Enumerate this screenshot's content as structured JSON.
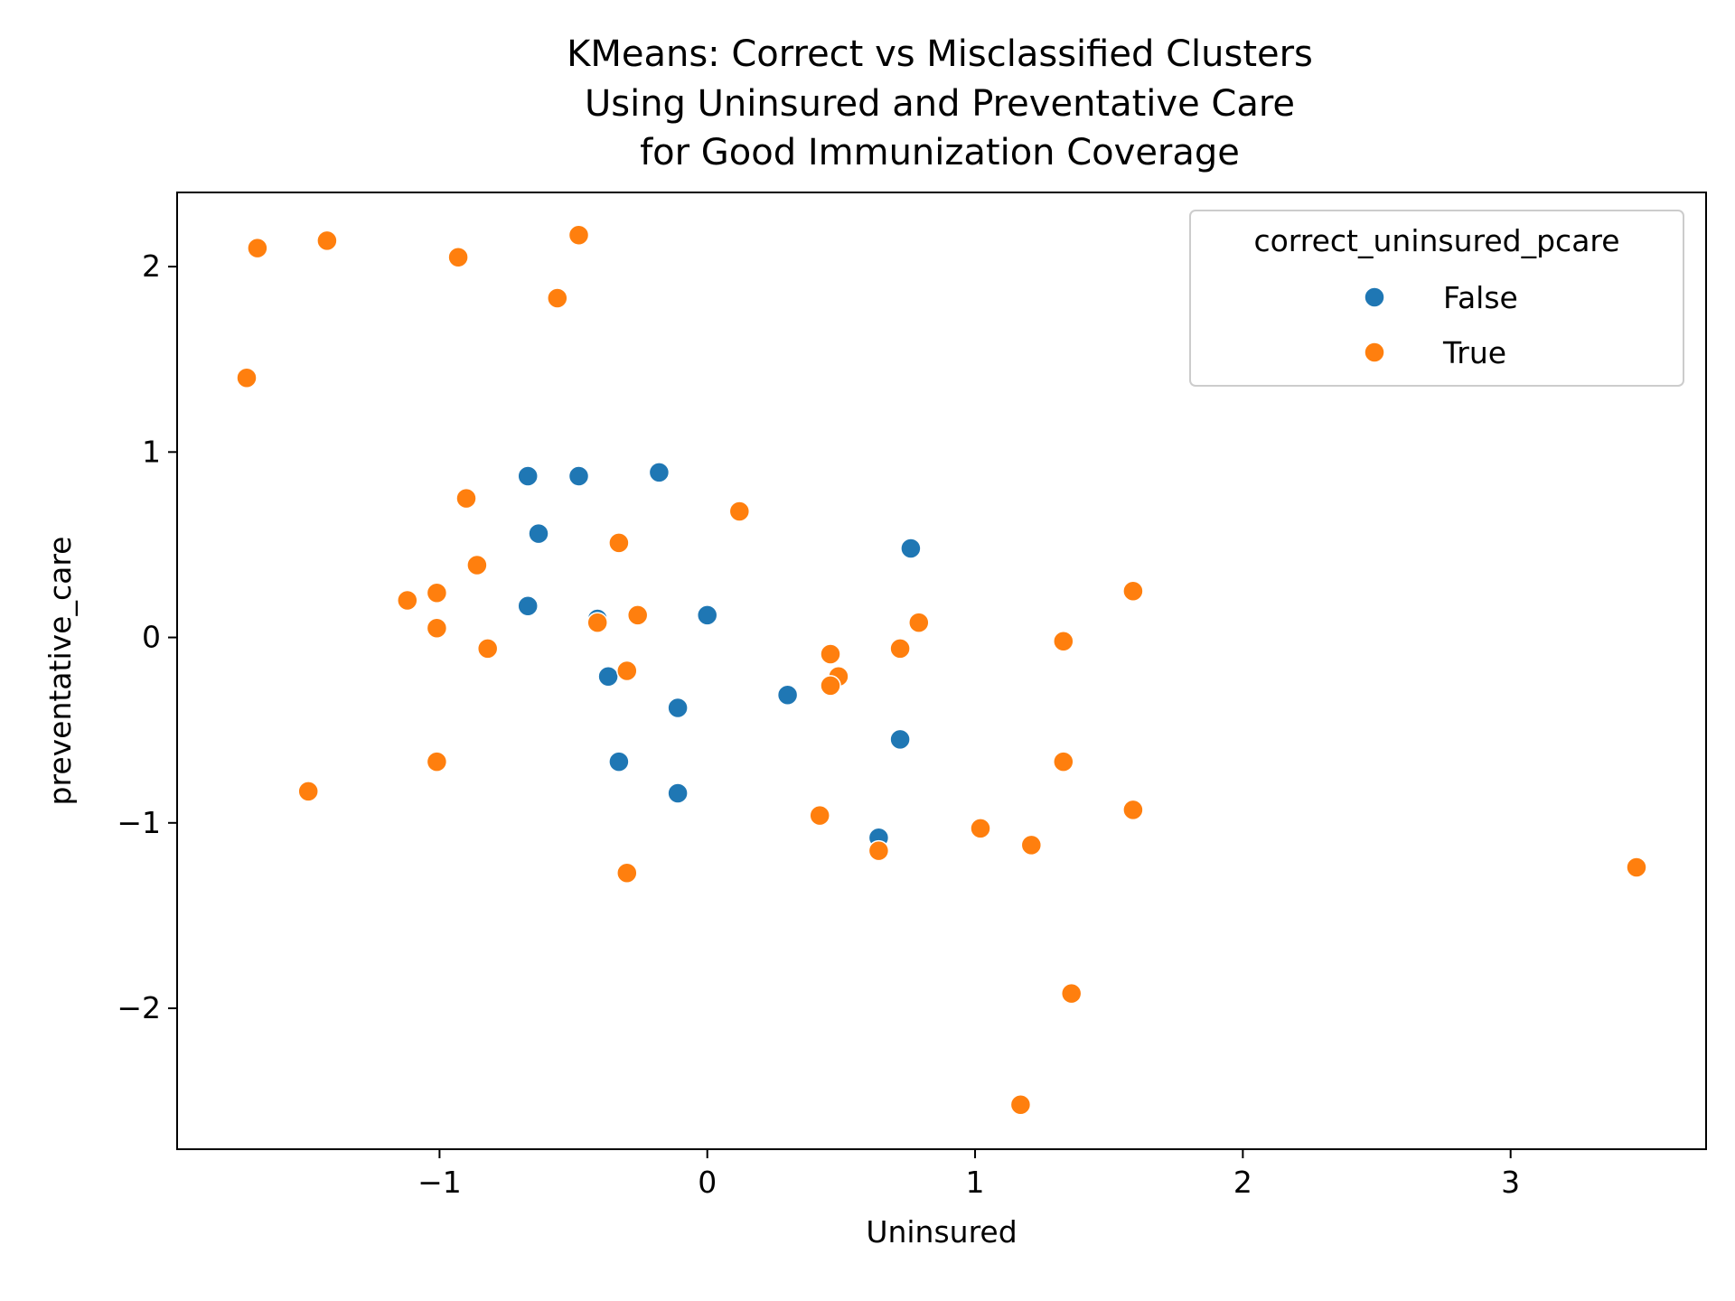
{
  "chart_data": {
    "type": "scatter",
    "title_lines": [
      "KMeans: Correct vs Misclassified Clusters",
      "Using Uninsured and Preventative Care",
      "for Good Immunization Coverage"
    ],
    "xlabel": "Uninsured",
    "ylabel": "preventative_care",
    "xlim": [
      -1.98,
      3.73
    ],
    "ylim": [
      -2.76,
      2.4
    ],
    "xticks": [
      -1,
      0,
      1,
      2,
      3
    ],
    "yticks": [
      -2,
      -1,
      0,
      1,
      2
    ],
    "xtick_labels": [
      "−1",
      "0",
      "1",
      "2",
      "3"
    ],
    "ytick_labels": [
      "−2",
      "−1",
      "0",
      "1",
      "2"
    ],
    "grid": false,
    "legend": {
      "title": "correct_uninsured_pcare",
      "placement": "top-right",
      "entries": [
        "False",
        "True"
      ]
    },
    "colors": {
      "False": "#1f77b4",
      "True": "#ff7f0e"
    },
    "series": [
      {
        "name": "False",
        "points": [
          [
            -0.67,
            0.87
          ],
          [
            -0.48,
            0.87
          ],
          [
            -0.18,
            0.89
          ],
          [
            -0.63,
            0.56
          ],
          [
            -0.67,
            0.17
          ],
          [
            -0.41,
            0.1
          ],
          [
            0.0,
            0.12
          ],
          [
            -0.37,
            -0.21
          ],
          [
            -0.11,
            -0.38
          ],
          [
            0.3,
            -0.31
          ],
          [
            -0.33,
            -0.67
          ],
          [
            -0.11,
            -0.84
          ],
          [
            0.72,
            -0.55
          ],
          [
            0.64,
            -1.08
          ],
          [
            0.76,
            0.48
          ]
        ]
      },
      {
        "name": "True",
        "points": [
          [
            -1.68,
            2.1
          ],
          [
            -1.42,
            2.14
          ],
          [
            -0.93,
            2.05
          ],
          [
            -0.48,
            2.17
          ],
          [
            -0.56,
            1.83
          ],
          [
            -1.72,
            1.4
          ],
          [
            -0.9,
            0.75
          ],
          [
            -0.86,
            0.39
          ],
          [
            -0.33,
            0.51
          ],
          [
            0.12,
            0.68
          ],
          [
            -1.12,
            0.2
          ],
          [
            -1.01,
            0.24
          ],
          [
            -1.01,
            0.05
          ],
          [
            -0.82,
            -0.06
          ],
          [
            -0.41,
            0.08
          ],
          [
            -0.26,
            0.12
          ],
          [
            -0.3,
            -0.18
          ],
          [
            0.46,
            -0.09
          ],
          [
            0.49,
            -0.21
          ],
          [
            0.46,
            -0.26
          ],
          [
            0.72,
            -0.06
          ],
          [
            0.79,
            0.08
          ],
          [
            1.33,
            -0.02
          ],
          [
            1.59,
            0.25
          ],
          [
            -1.01,
            -0.67
          ],
          [
            -1.49,
            -0.83
          ],
          [
            0.42,
            -0.96
          ],
          [
            0.64,
            -1.15
          ],
          [
            1.02,
            -1.03
          ],
          [
            1.21,
            -1.12
          ],
          [
            1.33,
            -0.67
          ],
          [
            1.59,
            -0.93
          ],
          [
            -0.3,
            -1.27
          ],
          [
            1.36,
            -1.92
          ],
          [
            1.17,
            -2.52
          ],
          [
            3.47,
            -1.24
          ]
        ]
      }
    ]
  }
}
